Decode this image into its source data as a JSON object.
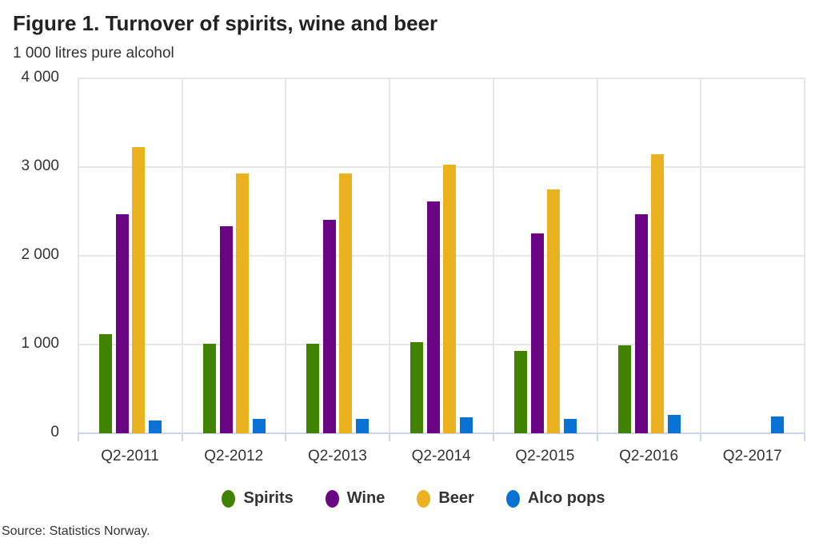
{
  "title": "Figure 1. Turnover of spirits, wine and beer",
  "subtitle": "1 000 litres pure alcohol",
  "source": "Source: Statistics Norway.",
  "colors": {
    "Spirits": "#3f8300",
    "Wine": "#690583",
    "Beer": "#eab21f",
    "Alco pops": "#0a72d4"
  },
  "y_ticks": [
    "0",
    "1 000",
    "2 000",
    "3 000",
    "4 000"
  ],
  "legend": [
    {
      "label": "Spirits",
      "color": "#3f8300"
    },
    {
      "label": "Wine",
      "color": "#690583"
    },
    {
      "label": "Beer",
      "color": "#eab21f"
    },
    {
      "label": "Alco pops",
      "color": "#0a72d4"
    }
  ],
  "chart_data": {
    "type": "bar",
    "title": "Figure 1. Turnover of spirits, wine and beer",
    "subtitle": "1 000 litres pure alcohol",
    "xlabel": "",
    "ylabel": "1 000 litres pure alcohol",
    "ylim": [
      0,
      4000
    ],
    "y_ticks": [
      0,
      1000,
      2000,
      3000,
      4000
    ],
    "grid": true,
    "legend_position": "bottom",
    "categories": [
      "Q2-2011",
      "Q2-2012",
      "Q2-2013",
      "Q2-2014",
      "Q2-2015",
      "Q2-2016",
      "Q2-2017"
    ],
    "series": [
      {
        "name": "Spirits",
        "color": "#3f8300",
        "values": [
          1115,
          1005,
          1005,
          1025,
          930,
          990,
          null
        ]
      },
      {
        "name": "Wine",
        "color": "#690583",
        "values": [
          2470,
          2330,
          2405,
          2610,
          2255,
          2470,
          null
        ]
      },
      {
        "name": "Beer",
        "color": "#eab21f",
        "values": [
          3225,
          2930,
          2930,
          3025,
          2750,
          3145,
          null
        ]
      },
      {
        "name": "Alco pops",
        "color": "#0a72d4",
        "values": [
          145,
          165,
          165,
          180,
          165,
          210,
          190
        ]
      }
    ],
    "source": "Source: Statistics Norway."
  }
}
